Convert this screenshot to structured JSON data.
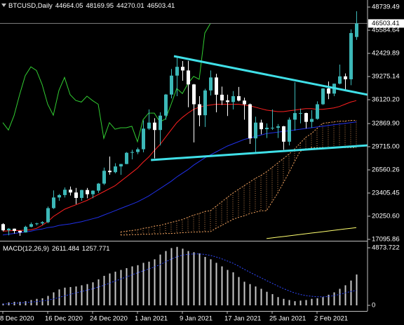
{
  "chart_data": {
    "type": "candlestick",
    "title": "BTCUSD,Daily",
    "categories": [
      "8 Dec 2020",
      null,
      null,
      null,
      null,
      null,
      null,
      null,
      "16 Dec 2020",
      null,
      null,
      null,
      null,
      null,
      null,
      null,
      "24 Dec 2020",
      null,
      null,
      null,
      null,
      null,
      null,
      null,
      "1 Jan 2021",
      null,
      null,
      null,
      null,
      null,
      null,
      null,
      "9 Jan 2021",
      null,
      null,
      null,
      null,
      null,
      null,
      null,
      "17 Jan 2021",
      null,
      null,
      null,
      null,
      null,
      null,
      null,
      "25 Jan 2021",
      null,
      null,
      null,
      null,
      null,
      null,
      null,
      "2 Feb 2021",
      null,
      null,
      null,
      null,
      null,
      null,
      null
    ],
    "open": [
      19170,
      18330,
      18550,
      18250,
      18040,
      18800,
      19170,
      19270,
      19440,
      21350,
      22800,
      23130,
      23860,
      23480,
      22740,
      23820,
      23240,
      23730,
      24690,
      26440,
      26250,
      27030,
      27360,
      28890,
      28990,
      29370,
      32180,
      33000,
      31990,
      33950,
      36820,
      39400,
      40600,
      40100,
      38200,
      35500,
      34000,
      37380,
      39150,
      36800,
      36020,
      35800,
      36600,
      36000,
      35500,
      30850,
      33000,
      32100,
      32300,
      32300,
      32500,
      30400,
      33400,
      34300,
      34300,
      33100,
      33500,
      35500,
      37650,
      36950,
      38300,
      39300,
      38900,
      44664.05
    ],
    "high": [
      19290,
      18640,
      18560,
      18290,
      18950,
      19400,
      19350,
      19570,
      21560,
      23770,
      23280,
      24170,
      24290,
      24100,
      23850,
      24100,
      23780,
      24770,
      26870,
      28380,
      27470,
      27380,
      28990,
      29300,
      29600,
      33300,
      34800,
      33600,
      34400,
      36900,
      40300,
      41950,
      41380,
      41400,
      38260,
      36600,
      37600,
      40100,
      39650,
      37900,
      36800,
      37300,
      37850,
      36400,
      35600,
      33800,
      33400,
      32900,
      34800,
      32800,
      32550,
      33700,
      38500,
      34900,
      34350,
      34700,
      35900,
      37700,
      38600,
      38300,
      40900,
      39700,
      45700,
      48169.95
    ],
    "low": [
      18200,
      17650,
      17900,
      17570,
      18020,
      18730,
      19000,
      19060,
      19300,
      21230,
      22350,
      22800,
      23070,
      21900,
      22360,
      22700,
      22700,
      23430,
      24500,
      25900,
      26080,
      25880,
      27340,
      28000,
      28700,
      28950,
      32000,
      28130,
      29900,
      33400,
      36300,
      36600,
      38700,
      35100,
      30300,
      32500,
      32400,
      36700,
      34400,
      35400,
      33900,
      34800,
      35900,
      33400,
      30100,
      28950,
      31400,
      30900,
      32000,
      30900,
      29300,
      29900,
      31900,
      32900,
      32200,
      32300,
      33400,
      35400,
      36200,
      36600,
      38200,
      37400,
      38100,
      44270.01
    ],
    "close": [
      18330,
      18550,
      18250,
      18040,
      18800,
      19170,
      19270,
      19440,
      21350,
      22800,
      23130,
      23860,
      23480,
      22740,
      23820,
      23240,
      23730,
      24690,
      26440,
      26250,
      27030,
      27360,
      28890,
      28990,
      29370,
      32180,
      33000,
      31990,
      33950,
      36820,
      39400,
      40600,
      40100,
      38200,
      35500,
      34000,
      37380,
      39150,
      36800,
      36020,
      35800,
      36600,
      36000,
      35500,
      30850,
      33000,
      32100,
      32300,
      32300,
      32500,
      30400,
      33400,
      34300,
      34300,
      33100,
      33500,
      35500,
      37650,
      36950,
      38300,
      39300,
      38900,
      45200,
      46503.41
    ],
    "bull_color": "#3cb8b8",
    "bear_color": "#ffffff",
    "ylim": [
      17000,
      49700
    ],
    "yticks": [
      48739.49,
      45584.64,
      42429.89,
      39275.14,
      {
        "value": 36120.2,
        "label": "36120.20"
      },
      {
        "value": 32869.9,
        "label": "32869.90"
      },
      {
        "value": 29715,
        "label": "29715.00"
      },
      26560.26,
      23405.45,
      {
        "value": 20250.6,
        "label": "20250.60"
      },
      17095.86
    ],
    "lines": [
      {
        "color": "#ff2020",
        "values": [
          18200,
          18250,
          18300,
          18300,
          18350,
          18400,
          18600,
          19000,
          19500,
          20200,
          20700,
          21200,
          21500,
          21800,
          22100,
          22400,
          22800,
          23200,
          23600,
          24000,
          24400,
          25000,
          25600,
          26200,
          26800,
          27600,
          28300,
          29200,
          30000,
          31000,
          32000,
          33000,
          33700,
          34300,
          34800,
          35100,
          35300,
          35400,
          35500,
          35500,
          35500,
          35500,
          35500,
          35400,
          35300,
          35100,
          34900,
          34700,
          34600,
          34500,
          34500,
          34600,
          34700,
          34800,
          34900,
          34900,
          34800,
          34800,
          34900,
          35000,
          35200,
          35500,
          35800,
          36000
        ]
      },
      {
        "color": "#2030e8",
        "values": [
          17700,
          17800,
          17900,
          18000,
          18100,
          18200,
          18400,
          18500,
          18700,
          18800,
          19000,
          19100,
          19200,
          19350,
          19500,
          19700,
          19900,
          20100,
          20400,
          20700,
          21000,
          21300,
          21600,
          21900,
          22200,
          22600,
          23000,
          23500,
          24000,
          24500,
          25000,
          25600,
          26100,
          26600,
          27200,
          27700,
          28200,
          28600,
          29000,
          29400,
          29800,
          30100,
          30400,
          30700,
          30900,
          31100,
          31300,
          31500,
          31600,
          31700,
          31800,
          31900,
          32000,
          32100,
          32200,
          32300,
          32400,
          32500,
          32600,
          32700,
          32800,
          32900,
          33000,
          33100
        ]
      },
      {
        "color": "#ffff70",
        "values": [
          null,
          null,
          null,
          null,
          null,
          null,
          null,
          null,
          null,
          null,
          null,
          null,
          null,
          null,
          null,
          null,
          null,
          null,
          null,
          null,
          null,
          null,
          null,
          null,
          null,
          null,
          null,
          null,
          null,
          null,
          null,
          null,
          null,
          null,
          null,
          null,
          null,
          null,
          null,
          null,
          null,
          null,
          null,
          null,
          null,
          null,
          null,
          17200,
          17294,
          17388,
          17482,
          17576,
          17670,
          17764,
          17858,
          17952,
          18046,
          18140,
          18234,
          18328,
          18422,
          18516,
          18610,
          18704
        ]
      },
      {
        "color": "#32cd32",
        "values": [
          33000,
          31990,
          33950,
          36820,
          39400,
          40600,
          40100,
          38200,
          35500,
          34000,
          37380,
          39150,
          36800,
          36020,
          35800,
          36600,
          36000,
          35500,
          30850,
          33000,
          32100,
          32300,
          32300,
          32500,
          30400,
          33400,
          34300,
          34300,
          33100,
          33500,
          35500,
          37650,
          36950,
          38300,
          39300,
          38900,
          45200,
          46503.41,
          null,
          null,
          null,
          null,
          null,
          null,
          null,
          null,
          null,
          null,
          null,
          null,
          null,
          null,
          null,
          null,
          null,
          null,
          null,
          null,
          null,
          null,
          null,
          null,
          null,
          null
        ]
      }
    ],
    "cloud": {
      "color": "#f4a460",
      "span_a": [
        null,
        null,
        null,
        null,
        null,
        null,
        null,
        null,
        null,
        null,
        null,
        null,
        null,
        null,
        null,
        null,
        null,
        null,
        null,
        null,
        null,
        18100,
        18200,
        18300,
        18400,
        18600,
        18700,
        18900,
        19000,
        19200,
        19400,
        19600,
        19800,
        20100,
        20400,
        20600,
        20900,
        21000,
        21600,
        22200,
        22800,
        23400,
        23900,
        24400,
        24900,
        25400,
        25800,
        26300,
        26900,
        27500,
        28100,
        28700,
        29400,
        30200,
        31000,
        31500,
        32200,
        32900,
        33000,
        33100,
        33200,
        33200,
        33300,
        33300
      ],
      "span_b": [
        null,
        null,
        null,
        null,
        null,
        null,
        null,
        null,
        null,
        null,
        null,
        null,
        null,
        null,
        null,
        null,
        null,
        null,
        null,
        null,
        null,
        17700,
        17700,
        17750,
        17750,
        17800,
        17800,
        17850,
        17850,
        17900,
        17900,
        17950,
        18000,
        18050,
        18100,
        18100,
        18150,
        18150,
        18600,
        19000,
        19400,
        19800,
        20100,
        20300,
        20600,
        20800,
        21000,
        21000,
        22200,
        23400,
        24800,
        26200,
        27700,
        29100,
        29300,
        29600,
        29600,
        29600,
        29600,
        29600,
        29600,
        29600,
        29600,
        29600
      ]
    },
    "trendlines": [
      {
        "color": "#40e0e8",
        "x": [
          30.5,
          65
        ],
        "values": [
          42050,
          36800
        ]
      },
      {
        "color": "#40e0e8",
        "x": [
          26.4,
          65
        ],
        "values": [
          27900,
          29900
        ]
      }
    ],
    "macd": {
      "label": "MACD(12,26,9)",
      "histogram": [
        150,
        250,
        300,
        300,
        350,
        450,
        550,
        600,
        800,
        1100,
        1350,
        1500,
        1550,
        1600,
        1700,
        1800,
        1950,
        2200,
        2500,
        2700,
        2850,
        3000,
        3150,
        3300,
        3400,
        3600,
        3700,
        3900,
        4300,
        4600,
        4850,
        4950,
        4800,
        4600,
        4500,
        4400,
        4100,
        3900,
        3600,
        3300,
        3000,
        2800,
        2400,
        2000,
        1800,
        1600,
        1400,
        1150,
        950,
        700,
        550,
        450,
        350,
        400,
        450,
        550,
        600,
        700,
        900,
        1100,
        1400,
        1700,
        2100,
        2611.484
      ],
      "histogram_color": "#c8c8c8",
      "signal": [
        100,
        130,
        170,
        200,
        230,
        270,
        320,
        370,
        440,
        540,
        660,
        800,
        930,
        1050,
        1170,
        1280,
        1400,
        1550,
        1700,
        1870,
        2050,
        2230,
        2400,
        2580,
        2750,
        2920,
        3080,
        3250,
        3450,
        3680,
        3910,
        4110,
        4250,
        4320,
        4350,
        4360,
        4310,
        4230,
        4100,
        3950,
        3760,
        3570,
        3330,
        3060,
        2810,
        2570,
        2340,
        2100,
        1870,
        1640,
        1420,
        1230,
        1050,
        920,
        830,
        770,
        730,
        720,
        750,
        820,
        930,
        1050,
        1170,
        1257.771
      ],
      "signal_color": "#3048ff",
      "ylim": [
        -475,
        5350
      ],
      "yticks": [
        4873.722,
        0
      ]
    }
  }
}
